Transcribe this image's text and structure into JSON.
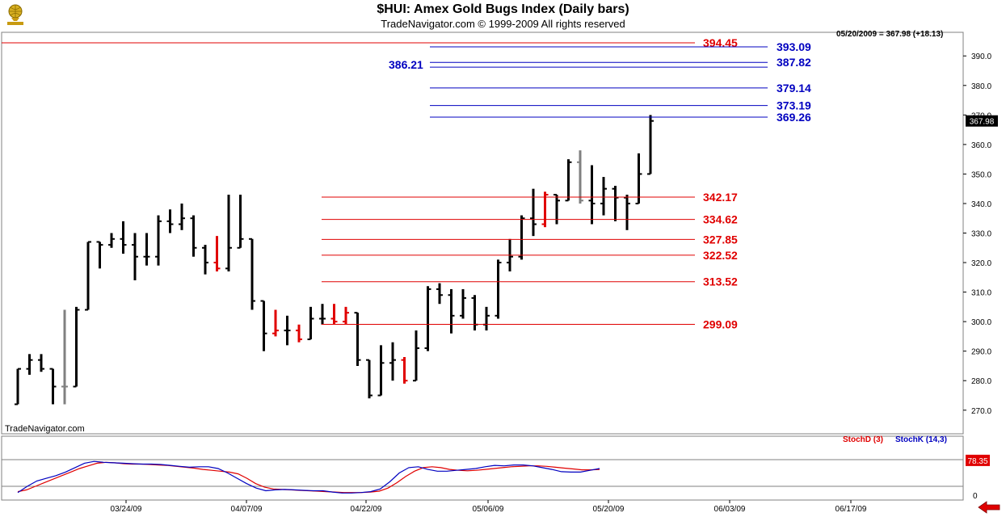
{
  "header": {
    "title": "$HUI:  Amex Gold Bugs Index  (Daily bars)",
    "subtitle": "TradeNavigator.com © 1999-2009 All rights reserved",
    "price_readout": "05/20/2009 = 367.98 (+18.13)",
    "watermark": "TradeNavigator.com",
    "logo_icon": "atlas-globe-icon"
  },
  "indicator": {
    "stoch_d_label": "StochD (3)",
    "stoch_k_label": "StochK (14,3)",
    "last_value": "78.35",
    "axis_zero": "0",
    "d_color": "#e00000",
    "k_color": "#0000c0",
    "d_values": [
      8,
      12,
      20,
      28,
      36,
      44,
      52,
      60,
      66,
      72,
      74,
      73,
      71,
      70,
      70,
      69,
      68,
      67,
      65,
      63,
      61,
      58,
      56,
      54,
      52,
      48,
      38,
      26,
      18,
      14,
      13,
      12,
      11,
      10,
      9,
      8,
      7,
      6,
      6,
      6,
      7,
      9,
      16,
      28,
      42,
      54,
      62,
      64,
      62,
      58,
      56,
      55,
      56,
      58,
      60,
      62,
      64,
      65,
      66,
      66,
      65,
      63,
      61,
      59,
      57,
      57,
      58
    ],
    "k_values": [
      6,
      20,
      32,
      38,
      44,
      52,
      62,
      72,
      76,
      74,
      73,
      72,
      71,
      70,
      70,
      69,
      67,
      65,
      63,
      64,
      64,
      60,
      50,
      38,
      26,
      16,
      10,
      12,
      13,
      12,
      11,
      10,
      10,
      7,
      5,
      5,
      6,
      8,
      14,
      30,
      50,
      62,
      64,
      58,
      54,
      54,
      56,
      58,
      60,
      64,
      67,
      66,
      68,
      68,
      66,
      62,
      58,
      53,
      52,
      52,
      56,
      60
    ],
    "ref_lines": [
      20,
      80
    ]
  },
  "chart_data": {
    "type": "ohlc",
    "title": "$HUI:  Amex Gold Bugs Index  (Daily bars)",
    "y_range": [
      262,
      398
    ],
    "y_ticks": [
      270,
      280,
      290,
      300,
      310,
      320,
      330,
      340,
      350,
      360,
      370,
      380,
      390
    ],
    "x_tick_labels": [
      "03/24/09",
      "04/07/09",
      "04/22/09",
      "05/06/09",
      "05/20/09",
      "06/03/09",
      "06/17/09"
    ],
    "last_price_label": "367.98",
    "colors": {
      "up_bar": "#000000",
      "down_bar": "#e00000",
      "neutral_bar": "#808080",
      "support": "#e00000",
      "resistance": "#0000c0"
    },
    "bars": [
      {
        "o": 272,
        "h": 284,
        "l": 272,
        "c": 284,
        "color": "black"
      },
      {
        "o": 284,
        "h": 289,
        "l": 282,
        "c": 287,
        "color": "black"
      },
      {
        "o": 287,
        "h": 289,
        "l": 283,
        "c": 284,
        "color": "black"
      },
      {
        "o": 284,
        "h": 284,
        "l": 272,
        "c": 278,
        "color": "black"
      },
      {
        "o": 278,
        "h": 304,
        "l": 272,
        "c": 278,
        "color": "gray"
      },
      {
        "o": 278,
        "h": 305,
        "l": 278,
        "c": 304,
        "color": "black"
      },
      {
        "o": 304,
        "h": 327,
        "l": 304,
        "c": 327,
        "color": "black"
      },
      {
        "o": 327,
        "h": 327,
        "l": 318,
        "c": 326,
        "color": "black"
      },
      {
        "o": 326,
        "h": 330,
        "l": 325,
        "c": 328,
        "color": "black"
      },
      {
        "o": 328,
        "h": 334,
        "l": 323,
        "c": 326,
        "color": "black"
      },
      {
        "o": 326,
        "h": 330,
        "l": 314,
        "c": 322,
        "color": "black"
      },
      {
        "o": 322,
        "h": 330,
        "l": 319,
        "c": 322,
        "color": "black"
      },
      {
        "o": 322,
        "h": 336,
        "l": 319,
        "c": 334,
        "color": "black"
      },
      {
        "o": 334,
        "h": 338,
        "l": 330,
        "c": 333,
        "color": "black"
      },
      {
        "o": 333,
        "h": 340,
        "l": 331,
        "c": 335,
        "color": "black"
      },
      {
        "o": 335,
        "h": 336,
        "l": 322,
        "c": 325,
        "color": "black"
      },
      {
        "o": 325,
        "h": 326,
        "l": 316,
        "c": 320,
        "color": "black"
      },
      {
        "o": 320,
        "h": 329,
        "l": 317,
        "c": 318,
        "color": "red"
      },
      {
        "o": 318,
        "h": 343,
        "l": 317,
        "c": 325,
        "color": "black"
      },
      {
        "o": 325,
        "h": 343,
        "l": 325,
        "c": 328,
        "color": "black"
      },
      {
        "o": 328,
        "h": 328,
        "l": 304,
        "c": 307,
        "color": "black"
      },
      {
        "o": 307,
        "h": 307,
        "l": 290,
        "c": 296,
        "color": "black"
      },
      {
        "o": 296,
        "h": 304,
        "l": 295,
        "c": 297,
        "color": "red"
      },
      {
        "o": 297,
        "h": 302,
        "l": 292,
        "c": 297,
        "color": "black"
      },
      {
        "o": 297,
        "h": 299,
        "l": 293,
        "c": 294,
        "color": "red"
      },
      {
        "o": 294,
        "h": 305,
        "l": 294,
        "c": 301,
        "color": "black"
      },
      {
        "o": 301,
        "h": 306,
        "l": 299,
        "c": 301,
        "color": "black"
      },
      {
        "o": 301,
        "h": 306,
        "l": 299,
        "c": 300,
        "color": "red"
      },
      {
        "o": 300,
        "h": 305,
        "l": 299,
        "c": 303,
        "color": "red"
      },
      {
        "o": 303,
        "h": 303,
        "l": 285,
        "c": 287,
        "color": "black"
      },
      {
        "o": 287,
        "h": 287,
        "l": 274,
        "c": 275,
        "color": "black"
      },
      {
        "o": 275,
        "h": 292,
        "l": 275,
        "c": 286,
        "color": "black"
      },
      {
        "o": 286,
        "h": 293,
        "l": 280,
        "c": 287,
        "color": "black"
      },
      {
        "o": 287,
        "h": 288,
        "l": 279,
        "c": 280,
        "color": "red"
      },
      {
        "o": 280,
        "h": 297,
        "l": 280,
        "c": 291,
        "color": "black"
      },
      {
        "o": 291,
        "h": 312,
        "l": 290,
        "c": 311,
        "color": "black"
      },
      {
        "o": 311,
        "h": 313,
        "l": 306,
        "c": 309,
        "color": "black"
      },
      {
        "o": 309,
        "h": 311,
        "l": 296,
        "c": 302,
        "color": "black"
      },
      {
        "o": 302,
        "h": 311,
        "l": 301,
        "c": 308,
        "color": "black"
      },
      {
        "o": 308,
        "h": 309,
        "l": 297,
        "c": 299,
        "color": "black"
      },
      {
        "o": 299,
        "h": 305,
        "l": 297,
        "c": 302,
        "color": "black"
      },
      {
        "o": 302,
        "h": 321,
        "l": 301,
        "c": 320,
        "color": "black"
      },
      {
        "o": 320,
        "h": 328,
        "l": 317,
        "c": 322,
        "color": "black"
      },
      {
        "o": 322,
        "h": 336,
        "l": 321,
        "c": 335,
        "color": "black"
      },
      {
        "o": 335,
        "h": 345,
        "l": 329,
        "c": 333,
        "color": "black"
      },
      {
        "o": 333,
        "h": 344,
        "l": 332,
        "c": 343,
        "color": "red"
      },
      {
        "o": 343,
        "h": 343,
        "l": 333,
        "c": 341,
        "color": "black"
      },
      {
        "o": 341,
        "h": 355,
        "l": 341,
        "c": 354,
        "color": "black"
      },
      {
        "o": 354,
        "h": 358,
        "l": 340,
        "c": 341,
        "color": "gray"
      },
      {
        "o": 341,
        "h": 353,
        "l": 333,
        "c": 340,
        "color": "black"
      },
      {
        "o": 340,
        "h": 349,
        "l": 336,
        "c": 345,
        "color": "black"
      },
      {
        "o": 345,
        "h": 346,
        "l": 334,
        "c": 342,
        "color": "black"
      },
      {
        "o": 342,
        "h": 343,
        "l": 331,
        "c": 340,
        "color": "black"
      },
      {
        "o": 340,
        "h": 357,
        "l": 340,
        "c": 350,
        "color": "black"
      },
      {
        "o": 350,
        "h": 370,
        "l": 350,
        "c": 367.98,
        "color": "black"
      }
    ],
    "support_levels": [
      342.17,
      334.62,
      327.85,
      322.52,
      313.52,
      299.09
    ],
    "resistance_levels": [
      {
        "value": 394.45,
        "color": "red"
      },
      {
        "value": 393.09,
        "color": "blue"
      },
      {
        "value": 387.82,
        "color": "blue"
      },
      {
        "value": 386.21,
        "color": "blue"
      },
      {
        "value": 379.14,
        "color": "blue"
      },
      {
        "value": 373.19,
        "color": "blue"
      },
      {
        "value": 369.26,
        "color": "blue"
      }
    ]
  }
}
